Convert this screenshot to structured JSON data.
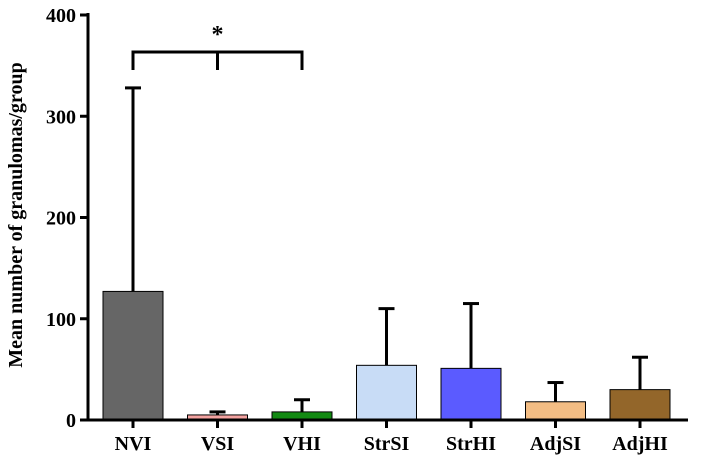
{
  "chart_data": {
    "type": "bar",
    "ylabel": "Mean number of granulomas/group",
    "xlabel": "",
    "title": "",
    "ylim": [
      0,
      400
    ],
    "yticks": [
      0,
      100,
      200,
      300,
      400
    ],
    "grid": false,
    "categories": [
      "NVI",
      "VSI",
      "VHI",
      "StrSI",
      "StrHI",
      "AdjSI",
      "AdjHI"
    ],
    "values": [
      127,
      5,
      8,
      54,
      51,
      18,
      30
    ],
    "error_upper": [
      328,
      8,
      20,
      110,
      115,
      37,
      62
    ],
    "bar_colors": [
      "#666666",
      "#f4a3a1",
      "#138a13",
      "#c8dcf6",
      "#5b5bff",
      "#f3bd84",
      "#93662a"
    ],
    "significance": {
      "from": "NVI",
      "to": "VHI",
      "via": "VSI",
      "label": "*"
    }
  }
}
